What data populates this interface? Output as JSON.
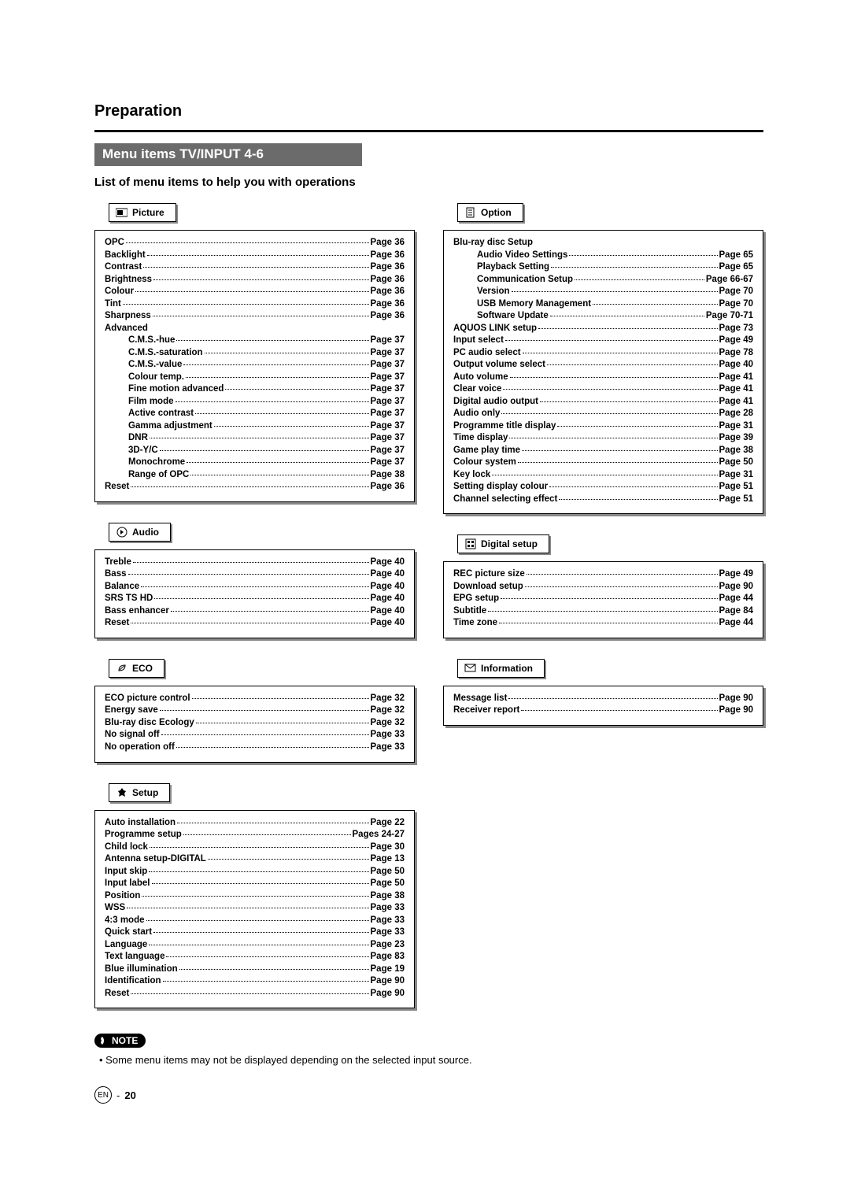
{
  "header": {
    "section_title": "Preparation",
    "bar_title": "Menu items TV/INPUT 4-6",
    "sub_title": "List of menu items to help you with operations"
  },
  "panels": {
    "picture": {
      "tab": "Picture",
      "rows": [
        {
          "label": "OPC",
          "page": "Page 36",
          "indent": 0
        },
        {
          "label": "Backlight",
          "page": "Page 36",
          "indent": 0
        },
        {
          "label": "Contrast",
          "page": "Page 36",
          "indent": 0
        },
        {
          "label": "Brightness",
          "page": "Page 36",
          "indent": 0
        },
        {
          "label": "Colour",
          "page": "Page 36",
          "indent": 0
        },
        {
          "label": "Tint",
          "page": "Page 36",
          "indent": 0
        },
        {
          "label": "Sharpness",
          "page": "Page 36",
          "indent": 0
        },
        {
          "label": "Advanced",
          "page": "",
          "indent": 0,
          "no_dots": true
        },
        {
          "label": "C.M.S.-hue",
          "page": "Page 37",
          "indent": 1
        },
        {
          "label": "C.M.S.-saturation",
          "page": "Page 37",
          "indent": 1
        },
        {
          "label": "C.M.S.-value",
          "page": "Page 37",
          "indent": 1
        },
        {
          "label": "Colour temp.",
          "page": "Page 37",
          "indent": 1
        },
        {
          "label": "Fine motion advanced",
          "page": "Page 37",
          "indent": 1
        },
        {
          "label": "Film mode",
          "page": "Page 37",
          "indent": 1
        },
        {
          "label": "Active contrast",
          "page": "Page 37",
          "indent": 1
        },
        {
          "label": "Gamma adjustment",
          "page": "Page 37",
          "indent": 1
        },
        {
          "label": "DNR",
          "page": "Page 37",
          "indent": 1
        },
        {
          "label": "3D-Y/C",
          "page": "Page 37",
          "indent": 1
        },
        {
          "label": "Monochrome",
          "page": "Page 37",
          "indent": 1
        },
        {
          "label": "Range of OPC",
          "page": "Page 38",
          "indent": 1
        },
        {
          "label": "Reset",
          "page": "Page 36",
          "indent": 0
        }
      ]
    },
    "audio": {
      "tab": "Audio",
      "rows": [
        {
          "label": "Treble",
          "page": "Page 40",
          "indent": 0
        },
        {
          "label": "Bass",
          "page": "Page 40",
          "indent": 0
        },
        {
          "label": "Balance",
          "page": "Page 40",
          "indent": 0
        },
        {
          "label": "SRS TS HD",
          "page": "Page 40",
          "indent": 0
        },
        {
          "label": "Bass enhancer",
          "page": "Page 40",
          "indent": 0
        },
        {
          "label": "Reset",
          "page": "Page 40",
          "indent": 0
        }
      ]
    },
    "eco": {
      "tab": "ECO",
      "rows": [
        {
          "label": "ECO picture control",
          "page": "Page 32",
          "indent": 0
        },
        {
          "label": "Energy save",
          "page": "Page 32",
          "indent": 0
        },
        {
          "label": "Blu-ray disc Ecology",
          "page": "Page 32",
          "indent": 0
        },
        {
          "label": "No signal off",
          "page": "Page 33",
          "indent": 0
        },
        {
          "label": "No operation off",
          "page": "Page 33",
          "indent": 0
        }
      ]
    },
    "setup": {
      "tab": "Setup",
      "rows": [
        {
          "label": "Auto installation",
          "page": "Page 22",
          "indent": 0
        },
        {
          "label": "Programme setup",
          "page": "Pages 24-27",
          "indent": 0
        },
        {
          "label": "Child lock",
          "page": "Page 30",
          "indent": 0
        },
        {
          "label": "Antenna setup-DIGITAL",
          "page": "Page 13",
          "indent": 0
        },
        {
          "label": "Input skip",
          "page": "Page 50",
          "indent": 0
        },
        {
          "label": "Input label",
          "page": "Page 50",
          "indent": 0
        },
        {
          "label": "Position",
          "page": "Page 38",
          "indent": 0
        },
        {
          "label": "WSS",
          "page": "Page 33",
          "indent": 0
        },
        {
          "label": "4:3 mode",
          "page": "Page 33",
          "indent": 0
        },
        {
          "label": "Quick start",
          "page": "Page 33",
          "indent": 0
        },
        {
          "label": "Language",
          "page": "Page 23",
          "indent": 0
        },
        {
          "label": "Text language",
          "page": "Page 83",
          "indent": 0
        },
        {
          "label": "Blue illumination",
          "page": "Page 19",
          "indent": 0
        },
        {
          "label": "Identification",
          "page": "Page 90",
          "indent": 0
        },
        {
          "label": "Reset",
          "page": "Page 90",
          "indent": 0
        }
      ]
    },
    "option": {
      "tab": "Option",
      "rows": [
        {
          "label": "Blu-ray disc Setup",
          "page": "",
          "indent": 0,
          "no_dots": true
        },
        {
          "label": "Audio Video Settings",
          "page": "Page 65",
          "indent": 1
        },
        {
          "label": "Playback Setting",
          "page": "Page 65",
          "indent": 1
        },
        {
          "label": "Communication Setup",
          "page": "Page 66-67",
          "indent": 1
        },
        {
          "label": "Version",
          "page": "Page 70",
          "indent": 1
        },
        {
          "label": "USB Memory Management",
          "page": "Page 70",
          "indent": 1
        },
        {
          "label": "Software Update",
          "page": "Page 70-71",
          "indent": 1
        },
        {
          "label": "AQUOS LINK setup",
          "page": "Page 73",
          "indent": 0
        },
        {
          "label": "Input select",
          "page": "Page 49",
          "indent": 0
        },
        {
          "label": "PC audio select",
          "page": "Page 78",
          "indent": 0
        },
        {
          "label": "Output volume select",
          "page": "Page 40",
          "indent": 0
        },
        {
          "label": "Auto volume",
          "page": "Page 41",
          "indent": 0
        },
        {
          "label": "Clear voice",
          "page": "Page 41",
          "indent": 0
        },
        {
          "label": "Digital audio output",
          "page": "Page 41",
          "indent": 0
        },
        {
          "label": "Audio only",
          "page": "Page 28",
          "indent": 0
        },
        {
          "label": "Programme title display",
          "page": "Page 31",
          "indent": 0
        },
        {
          "label": "Time display",
          "page": "Page 39",
          "indent": 0
        },
        {
          "label": "Game play time",
          "page": "Page 38",
          "indent": 0
        },
        {
          "label": "Colour system",
          "page": "Page 50",
          "indent": 0
        },
        {
          "label": "Key lock",
          "page": "Page 31",
          "indent": 0
        },
        {
          "label": "Setting display colour",
          "page": "Page 51",
          "indent": 0
        },
        {
          "label": "Channel selecting effect",
          "page": "Page 51",
          "indent": 0
        }
      ]
    },
    "digital": {
      "tab": "Digital setup",
      "rows": [
        {
          "label": "REC picture size",
          "page": "Page 49",
          "indent": 0
        },
        {
          "label": "Download setup",
          "page": "Page 90",
          "indent": 0
        },
        {
          "label": "EPG setup",
          "page": "Page 44",
          "indent": 0
        },
        {
          "label": "Subtitle",
          "page": "Page 84",
          "indent": 0
        },
        {
          "label": "Time zone",
          "page": "Page 44",
          "indent": 0
        }
      ]
    },
    "information": {
      "tab": "Information",
      "rows": [
        {
          "label": "Message list",
          "page": "Page 90",
          "indent": 0
        },
        {
          "label": "Receiver report",
          "page": "Page 90",
          "indent": 0
        }
      ]
    }
  },
  "note": {
    "badge": "NOTE",
    "text": "Some menu items may not be displayed depending on the selected input source."
  },
  "footer": {
    "lang": "EN",
    "sep": "-",
    "page_num": "20"
  }
}
